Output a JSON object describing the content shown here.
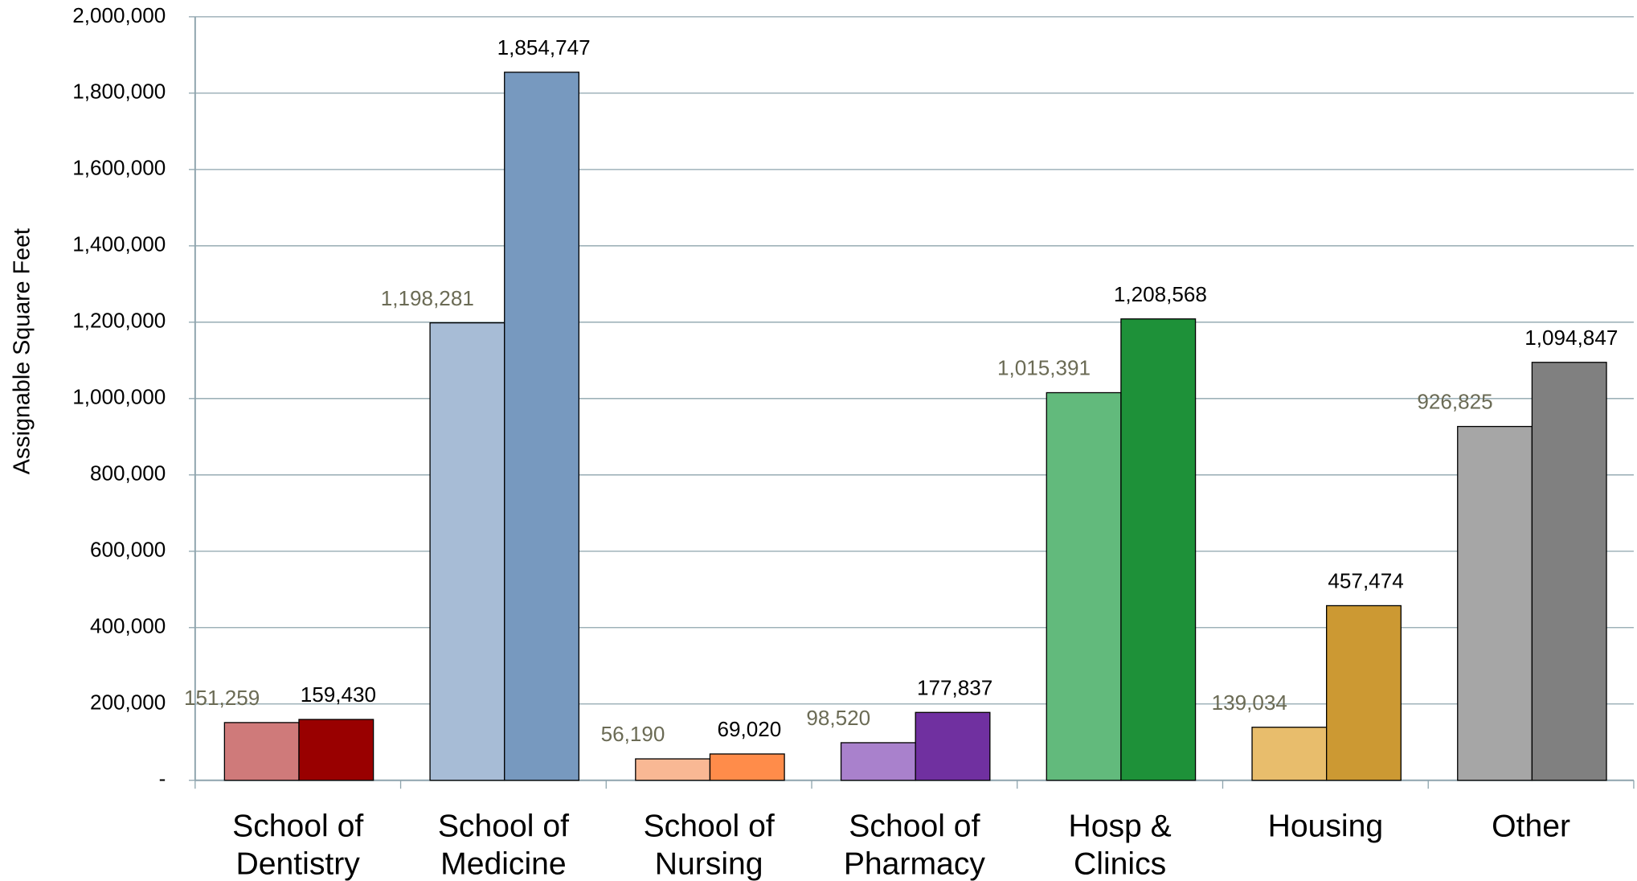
{
  "chart_data": {
    "type": "bar",
    "y_label": "Assignable Square Feet",
    "categories": [
      [
        "School of",
        "Dentistry"
      ],
      [
        "School of",
        "Medicine"
      ],
      [
        "School of",
        "Nursing"
      ],
      [
        "School of",
        "Pharmacy"
      ],
      [
        "Hosp &",
        "Clinics"
      ],
      [
        "Housing"
      ],
      [
        "Other"
      ]
    ],
    "series": [
      {
        "colors": [
          "#cf7a7a",
          "#a7bcd6",
          "#f9b894",
          "#a981cc",
          "#62ba7c",
          "#e8bd6c",
          "#a6a6a6"
        ],
        "label_color": "#6b6b55",
        "values": [
          151259,
          1198281,
          56190,
          98520,
          1015391,
          139034,
          926825
        ],
        "value_labels": [
          "151,259",
          "1,198,281",
          "56,190",
          "98,520",
          "1,015,391",
          "139,034",
          "926,825"
        ]
      },
      {
        "colors": [
          "#990000",
          "#7799bf",
          "#ff8c4a",
          "#7030a0",
          "#1e9139",
          "#cc9933",
          "#808080"
        ],
        "label_color": "#000000",
        "values": [
          159430,
          1854747,
          69020,
          177837,
          1208568,
          457474,
          1094847
        ],
        "value_labels": [
          "159,430",
          "1,854,747",
          "69,020",
          "177,837",
          "1,208,568",
          "457,474",
          "1,094,847"
        ]
      }
    ],
    "ylim": [
      0,
      2000000
    ],
    "yticks": [
      {
        "value": 0,
        "label": "-"
      },
      {
        "value": 200000,
        "label": "200,000"
      },
      {
        "value": 400000,
        "label": "400,000"
      },
      {
        "value": 600000,
        "label": "600,000"
      },
      {
        "value": 800000,
        "label": "800,000"
      },
      {
        "value": 1000000,
        "label": "1,000,000"
      },
      {
        "value": 1200000,
        "label": "1,200,000"
      },
      {
        "value": 1400000,
        "label": "1,400,000"
      },
      {
        "value": 1600000,
        "label": "1,600,000"
      },
      {
        "value": 1800000,
        "label": "1,800,000"
      },
      {
        "value": 2000000,
        "label": "2,000,000"
      }
    ],
    "grid": true
  }
}
